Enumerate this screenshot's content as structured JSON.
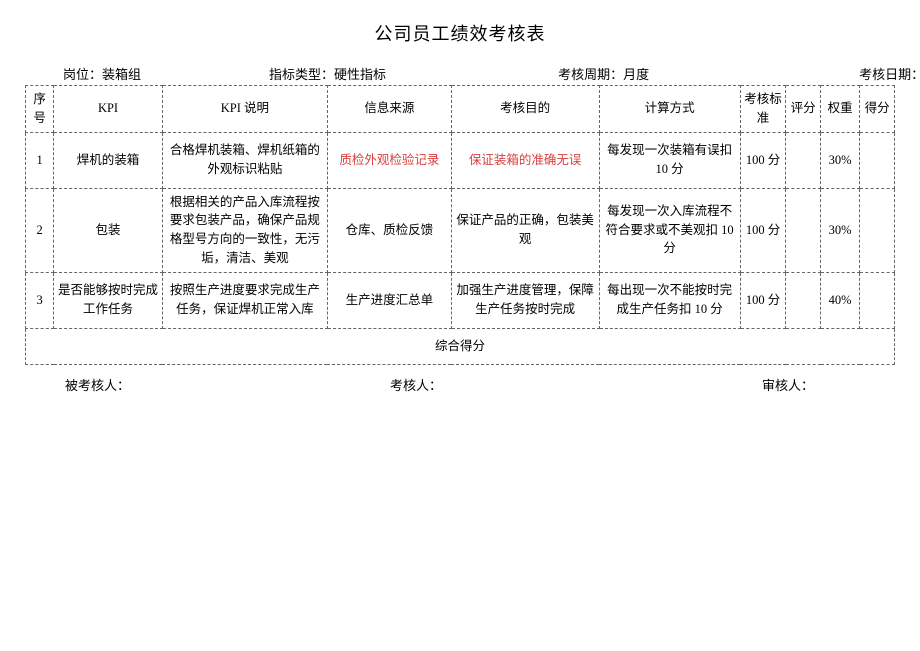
{
  "title": "公司员工绩效考核表",
  "meta": {
    "position_label": "岗位：",
    "position_value": "装箱组",
    "indicator_type_label": "指标类型：",
    "indicator_type_value": "硬性指标",
    "cycle_label": "考核周期：",
    "cycle_value": "月度",
    "date_label": "考核日期："
  },
  "headers": {
    "seq": "序号",
    "kpi": "KPI",
    "desc": "KPI 说明",
    "source": "信息来源",
    "purpose": "考核目的",
    "calc": "计算方式",
    "standard": "考核标准",
    "score": "评分",
    "weight": "权重",
    "final": "得分"
  },
  "rows": [
    {
      "seq": "1",
      "kpi": "焊机的装箱",
      "desc": "合格焊机装箱、焊机纸箱的外观标识粘贴",
      "source": "质检外观检验记录",
      "source_red": true,
      "purpose": "保证装箱的准确无误",
      "purpose_red": true,
      "calc": "每发现一次装箱有误扣10 分",
      "standard": "100 分",
      "score": "",
      "weight": "30%",
      "final": ""
    },
    {
      "seq": "2",
      "kpi": "包装",
      "desc": "根据相关的产品入库流程按要求包装产品，确保产品规格型号方向的一致性，无污垢，清洁、美观",
      "source": "仓库、质检反馈",
      "source_red": false,
      "purpose": "保证产品的正确，包装美观",
      "purpose_red": false,
      "calc": "每发现一次入库流程不符合要求或不美观扣 10分",
      "standard": "100 分",
      "score": "",
      "weight": "30%",
      "final": ""
    },
    {
      "seq": "3",
      "kpi": "是否能够按时完成工作任务",
      "desc": "按照生产进度要求完成生产任务，保证焊机正常入库",
      "source": "生产进度汇总单",
      "source_red": false,
      "purpose": "加强生产进度管理，保障生产任务按时完成",
      "purpose_red": false,
      "calc": "每出现一次不能按时完成生产任务扣 10 分",
      "standard": "100 分",
      "score": "",
      "weight": "40%",
      "final": ""
    }
  ],
  "summary_label": "综合得分",
  "footer": {
    "assessee": "被考核人：",
    "assessor": "考核人：",
    "reviewer": "审核人："
  }
}
